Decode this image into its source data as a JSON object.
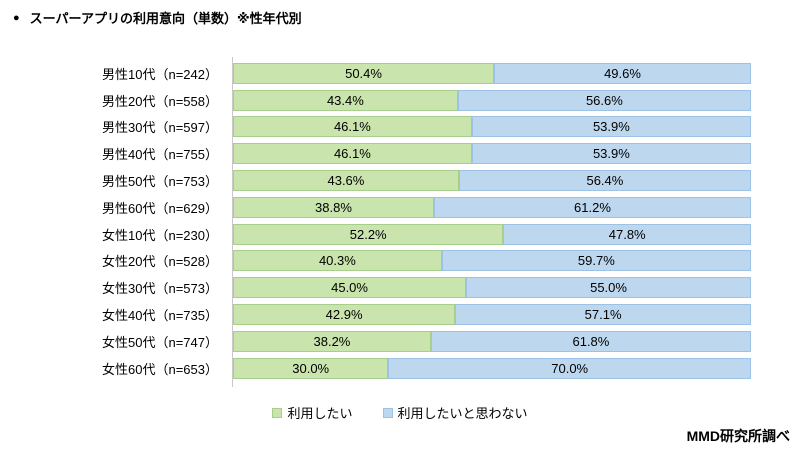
{
  "title": {
    "bullet": "●",
    "text": "スーパーアプリの利用意向（単数）※性年代別"
  },
  "footer": {
    "source": "MMD研究所調べ"
  },
  "chart_data": {
    "type": "bar",
    "orientation": "horizontal",
    "stacked": true,
    "unit": "%",
    "xlim": [
      0,
      100
    ],
    "grid": false,
    "legend_position": "bottom-center",
    "colors": {
      "want_fill": "#c9e4ac",
      "want_border": "#a7ce8c",
      "notwant_fill": "#bdd7ee",
      "notwant_border": "#9cc3e5"
    },
    "legend": [
      {
        "label": "利用したい",
        "color": "#c9e4ac"
      },
      {
        "label": "利用したいと思わない",
        "color": "#bdd7ee"
      }
    ],
    "series_names": [
      "利用したい",
      "利用したいと思わない"
    ],
    "rows": [
      {
        "label": "男性10代（n=242）",
        "values": [
          50.4,
          49.6
        ]
      },
      {
        "label": "男性20代（n=558）",
        "values": [
          43.4,
          56.6
        ]
      },
      {
        "label": "男性30代（n=597）",
        "values": [
          46.1,
          53.9
        ]
      },
      {
        "label": "男性40代（n=755）",
        "values": [
          46.1,
          53.9
        ]
      },
      {
        "label": "男性50代（n=753）",
        "values": [
          43.6,
          56.4
        ]
      },
      {
        "label": "男性60代（n=629）",
        "values": [
          38.8,
          61.2
        ]
      },
      {
        "label": "女性10代（n=230）",
        "values": [
          52.2,
          47.8
        ]
      },
      {
        "label": "女性20代（n=528）",
        "values": [
          40.3,
          59.7
        ]
      },
      {
        "label": "女性30代（n=573）",
        "values": [
          45.0,
          55.0
        ]
      },
      {
        "label": "女性40代（n=735）",
        "values": [
          42.9,
          57.1
        ]
      },
      {
        "label": "女性50代（n=747）",
        "values": [
          38.2,
          61.8
        ]
      },
      {
        "label": "女性60代（n=653）",
        "values": [
          30.0,
          70.0
        ]
      }
    ]
  }
}
